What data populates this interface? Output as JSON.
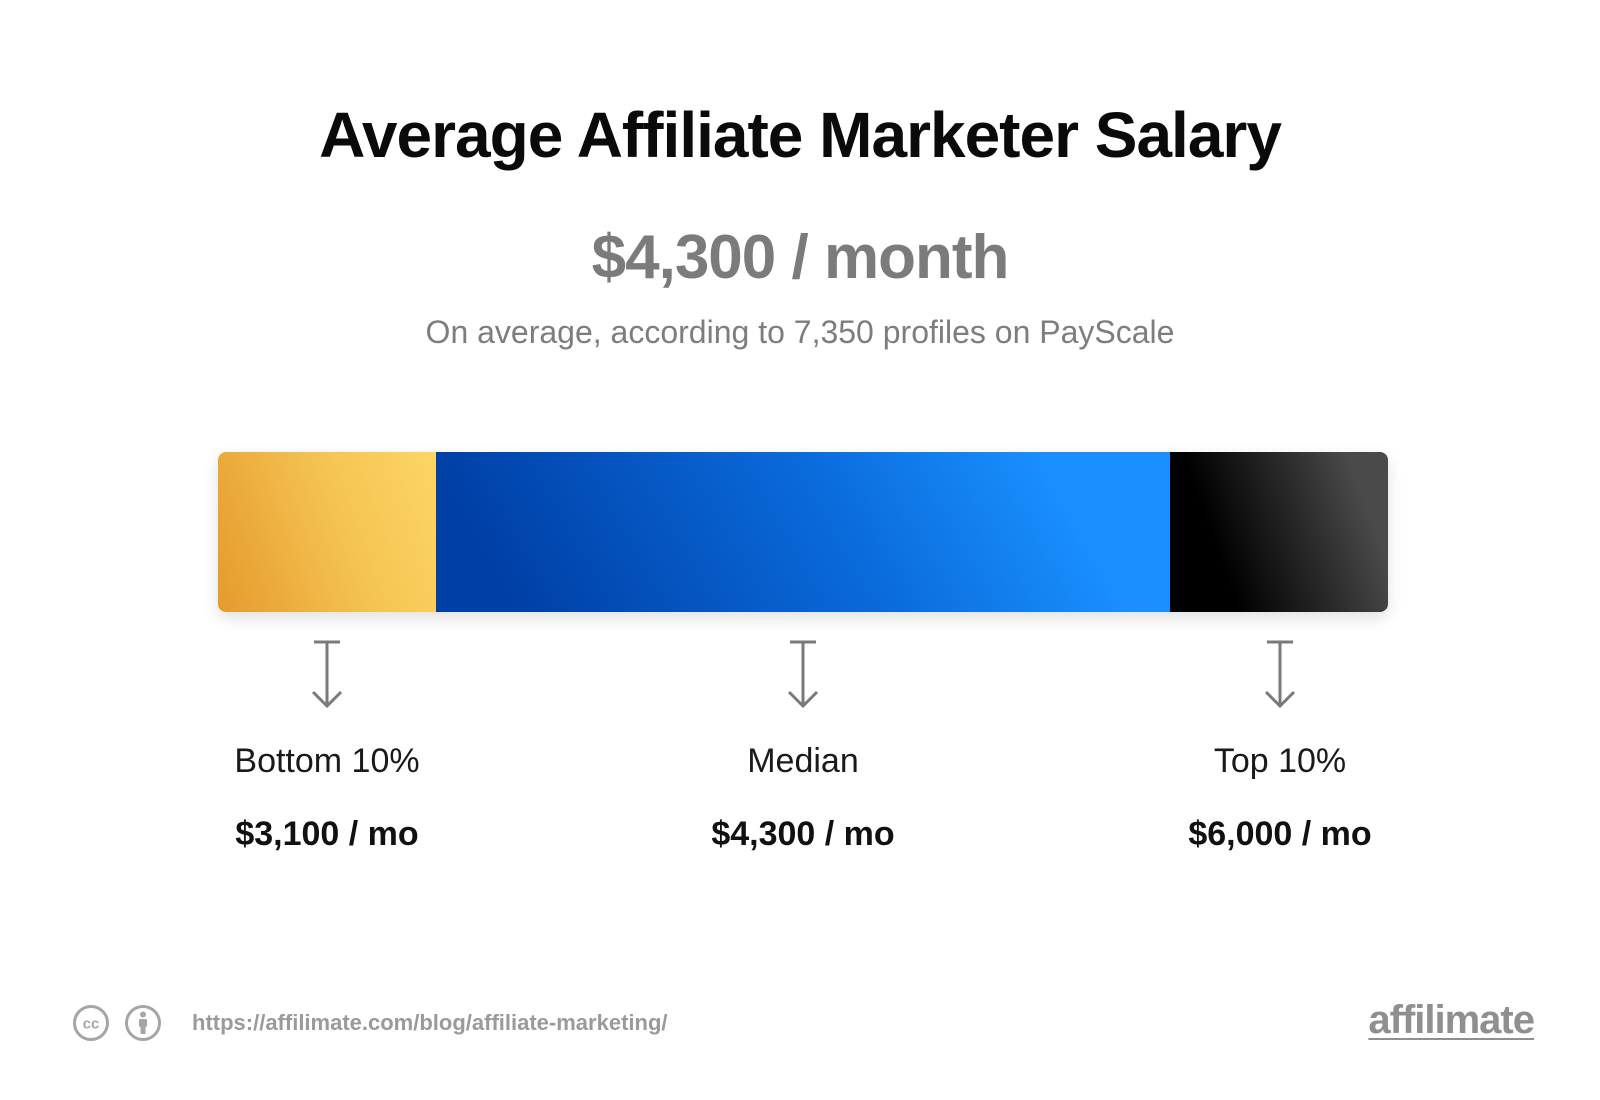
{
  "chart_data": {
    "type": "bar",
    "title": "Average Affiliate Marketer Salary",
    "headline": "$4,300 / month",
    "subtitle": "On average, according to 7,350 profiles on PayScale",
    "segments": [
      {
        "label": "Bottom 10%",
        "value": 3100,
        "display": "$3,100 / mo",
        "color": "#f0b13f"
      },
      {
        "label": "Median",
        "value": 4300,
        "display": "$4,300 / mo",
        "color": "#0a6bdb"
      },
      {
        "label": "Top 10%",
        "value": 6000,
        "display": "$6,000 / mo",
        "color": "#1a1a1a"
      }
    ],
    "segment_fractions": [
      0.186,
      0.628,
      0.186
    ]
  },
  "footer": {
    "url": "https://affilimate.com/blog/affiliate-marketing/",
    "icons": [
      "creative-commons-icon",
      "attribution-icon"
    ],
    "brand": "affilimate"
  }
}
